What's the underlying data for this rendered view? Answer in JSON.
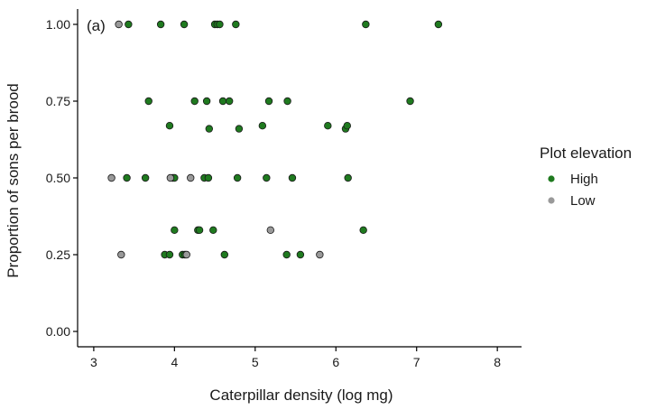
{
  "chart_data": {
    "type": "scatter",
    "title": "",
    "panel_label": "(a)",
    "xlabel": "Caterpillar density (log mg)",
    "ylabel": "Proportion of sons per brood",
    "xlim": [
      2.8,
      8.3
    ],
    "ylim": [
      -0.05,
      1.05
    ],
    "xticks": [
      "3",
      "4",
      "5",
      "6",
      "7",
      "8"
    ],
    "yticks": [
      "0.00",
      "0.25",
      "0.50",
      "0.75",
      "1.00"
    ],
    "grid": false,
    "legend": {
      "title": "Plot elevation",
      "position": "right",
      "items": [
        {
          "label": "High",
          "color": "#1f7a1f"
        },
        {
          "label": "Low",
          "color": "#999999"
        }
      ]
    },
    "series": [
      {
        "name": "High",
        "color": "#1f7a1f",
        "points": [
          [
            3.43,
            1.0
          ],
          [
            3.83,
            1.0
          ],
          [
            4.12,
            1.0
          ],
          [
            4.5,
            1.0
          ],
          [
            4.53,
            1.0
          ],
          [
            4.56,
            1.0
          ],
          [
            4.76,
            1.0
          ],
          [
            6.37,
            1.0
          ],
          [
            7.27,
            1.0
          ],
          [
            3.68,
            0.75
          ],
          [
            4.25,
            0.75
          ],
          [
            4.4,
            0.75
          ],
          [
            4.6,
            0.75
          ],
          [
            4.68,
            0.75
          ],
          [
            5.17,
            0.75
          ],
          [
            5.4,
            0.75
          ],
          [
            6.92,
            0.75
          ],
          [
            3.94,
            0.67
          ],
          [
            4.43,
            0.66
          ],
          [
            4.8,
            0.66
          ],
          [
            5.09,
            0.67
          ],
          [
            5.9,
            0.67
          ],
          [
            6.12,
            0.66
          ],
          [
            6.14,
            0.67
          ],
          [
            3.41,
            0.5
          ],
          [
            3.64,
            0.5
          ],
          [
            3.98,
            0.5
          ],
          [
            4.0,
            0.5
          ],
          [
            4.37,
            0.5
          ],
          [
            4.42,
            0.5
          ],
          [
            4.78,
            0.5
          ],
          [
            5.14,
            0.5
          ],
          [
            5.46,
            0.5
          ],
          [
            6.15,
            0.5
          ],
          [
            4.0,
            0.33
          ],
          [
            4.29,
            0.33
          ],
          [
            4.31,
            0.33
          ],
          [
            4.48,
            0.33
          ],
          [
            6.34,
            0.33
          ],
          [
            3.88,
            0.25
          ],
          [
            3.94,
            0.25
          ],
          [
            4.1,
            0.25
          ],
          [
            4.13,
            0.25
          ],
          [
            4.62,
            0.25
          ],
          [
            5.39,
            0.25
          ],
          [
            5.56,
            0.25
          ]
        ]
      },
      {
        "name": "Low",
        "color": "#999999",
        "points": [
          [
            3.31,
            1.0
          ],
          [
            3.22,
            0.5
          ],
          [
            3.95,
            0.5
          ],
          [
            4.2,
            0.5
          ],
          [
            5.19,
            0.33
          ],
          [
            3.34,
            0.25
          ],
          [
            4.15,
            0.25
          ],
          [
            5.8,
            0.25
          ]
        ]
      }
    ]
  }
}
